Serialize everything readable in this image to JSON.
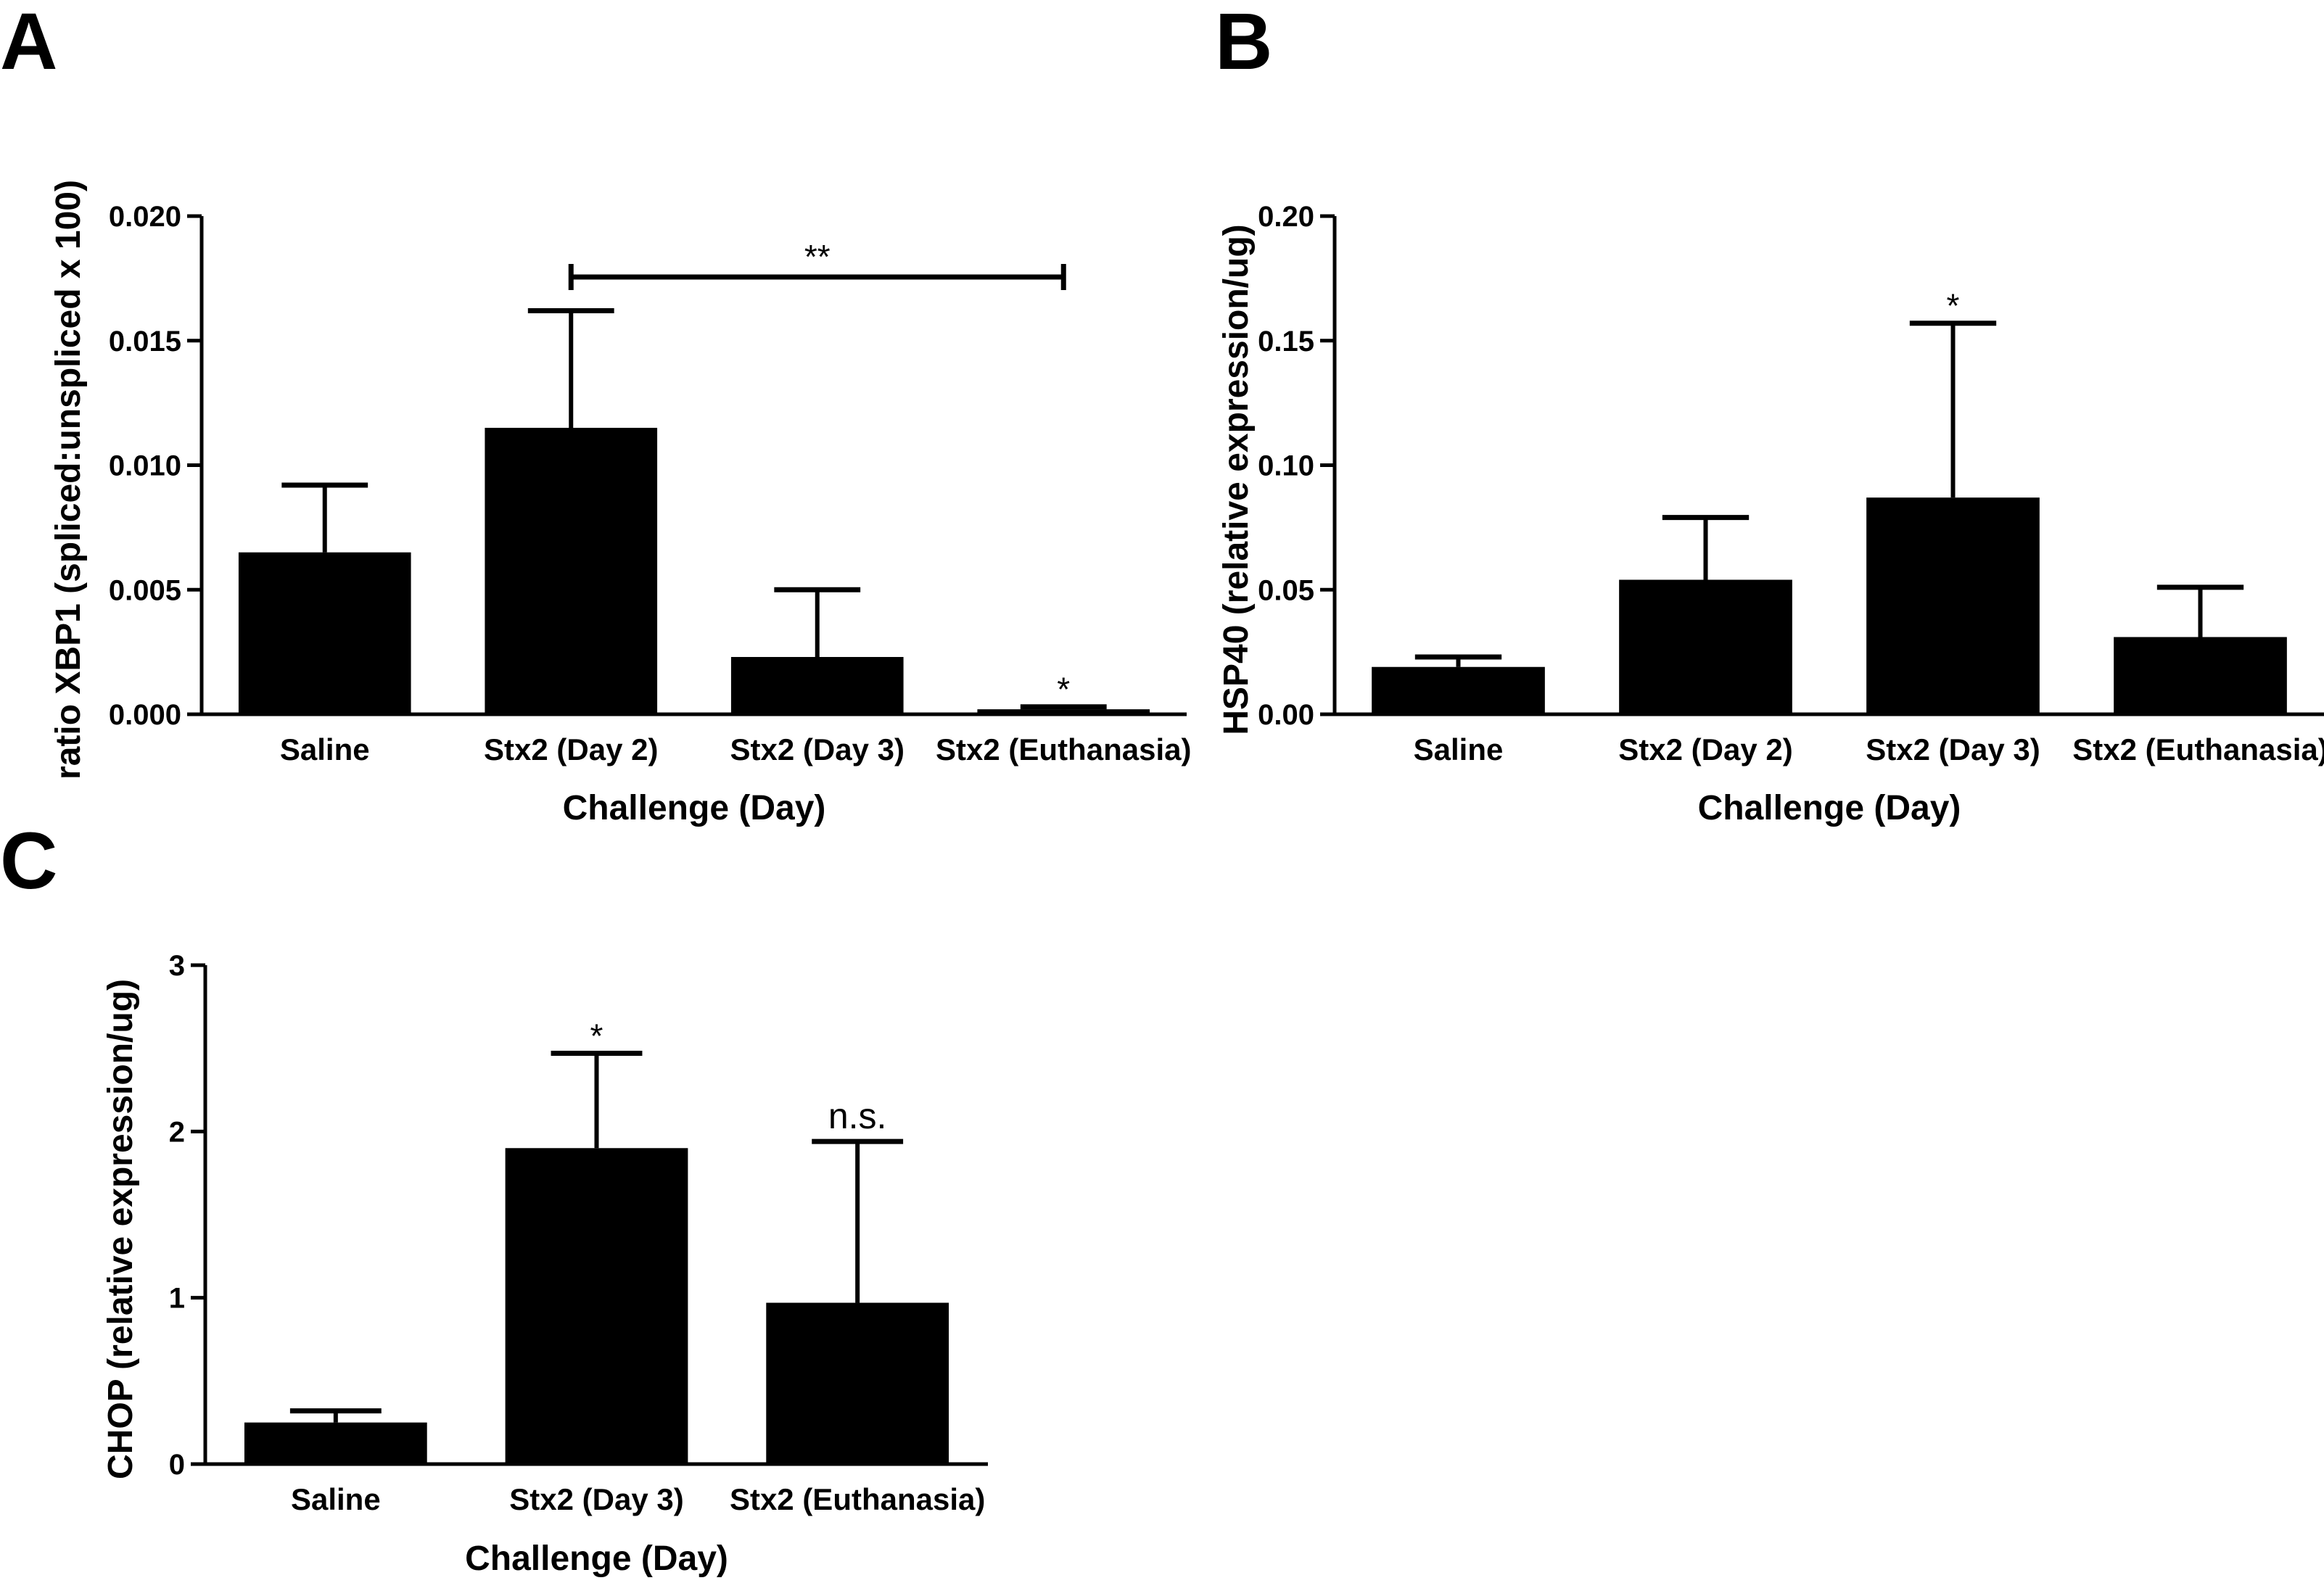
{
  "colors": {
    "bar": "#000000",
    "axis": "#000000",
    "background": "#ffffff"
  },
  "chart_data": [
    {
      "panel": "A",
      "type": "bar",
      "categories": [
        "Saline",
        "Stx2 (Day 2)",
        "Stx2 (Day 3)",
        "Stx2 (Euthanasia)"
      ],
      "values": [
        0.0065,
        0.0115,
        0.0023,
        0.0002
      ],
      "errors": [
        0.0027,
        0.0047,
        0.0027,
        0.0001
      ],
      "xlabel": "Challenge (Day)",
      "ylabel": "ratio XBP1 (spliced:unspliced x 100)",
      "ylim": [
        0,
        0.02
      ],
      "yticks": [
        "0.000",
        "0.005",
        "0.010",
        "0.015",
        "0.020"
      ],
      "annotations": [
        {
          "category": 3,
          "text": "*"
        }
      ],
      "bracket": {
        "from": 1,
        "to": 3,
        "text": "**"
      }
    },
    {
      "panel": "B",
      "type": "bar",
      "categories": [
        "Saline",
        "Stx2 (Day 2)",
        "Stx2 (Day 3)",
        "Stx2 (Euthanasia)"
      ],
      "values": [
        0.019,
        0.054,
        0.087,
        0.031
      ],
      "errors": [
        0.004,
        0.025,
        0.07,
        0.02
      ],
      "xlabel": "Challenge (Day)",
      "ylabel": "HSP40 (relative expression/ug)",
      "ylim": [
        0,
        0.2
      ],
      "yticks": [
        "0.00",
        "0.05",
        "0.10",
        "0.15",
        "0.20"
      ],
      "annotations": [
        {
          "category": 2,
          "text": "*"
        }
      ]
    },
    {
      "panel": "C",
      "type": "bar",
      "categories": [
        "Saline",
        "Stx2 (Day 3)",
        "Stx2 (Euthanasia)"
      ],
      "values": [
        0.25,
        1.9,
        0.97
      ],
      "errors": [
        0.07,
        0.57,
        0.97
      ],
      "xlabel": "Challenge (Day)",
      "ylabel": "CHOP (relative expression/ug)",
      "ylim": [
        0,
        3
      ],
      "yticks": [
        "0",
        "1",
        "2",
        "3"
      ],
      "annotations": [
        {
          "category": 1,
          "text": "*"
        },
        {
          "category": 2,
          "text": "n.s."
        }
      ]
    }
  ]
}
